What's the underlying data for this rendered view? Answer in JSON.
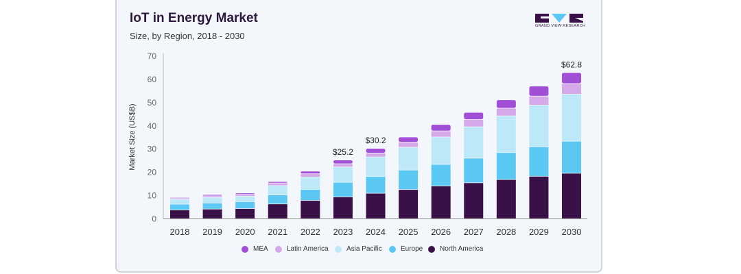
{
  "header": {
    "title": "IoT in Energy Market",
    "subtitle": "Size, by Region, 2018 - 2030",
    "logo_text": "GRAND VIEW RESEARCH"
  },
  "chart_data": {
    "type": "bar",
    "stacked": true,
    "title": "IoT in Energy Market",
    "subtitle": "Size, by Region, 2018 - 2030",
    "xlabel": "",
    "ylabel": "Market Size (US$B)",
    "ylim": [
      0,
      70
    ],
    "yticks": [
      0,
      10,
      20,
      30,
      40,
      50,
      60,
      70
    ],
    "grid": false,
    "legend_position": "bottom",
    "categories": [
      "2018",
      "2019",
      "2020",
      "2021",
      "2022",
      "2023",
      "2024",
      "2025",
      "2026",
      "2027",
      "2028",
      "2029",
      "2030"
    ],
    "series": [
      {
        "name": "North America",
        "color": "#3a1048",
        "values": [
          3.7,
          4.1,
          4.3,
          6.3,
          7.8,
          9.3,
          10.9,
          12.5,
          14.0,
          15.4,
          16.8,
          18.2,
          19.5
        ]
      },
      {
        "name": "Europe",
        "color": "#5ac8f2",
        "values": [
          2.5,
          2.6,
          3.0,
          3.9,
          4.8,
          6.3,
          7.2,
          8.4,
          9.3,
          10.6,
          11.6,
          12.7,
          13.8
        ]
      },
      {
        "name": "Asia Pacific",
        "color": "#bde8f8",
        "values": [
          2.1,
          2.4,
          2.3,
          4.0,
          5.3,
          6.6,
          8.4,
          9.8,
          11.8,
          13.5,
          15.8,
          17.9,
          20.2
        ]
      },
      {
        "name": "Latin America",
        "color": "#d5a8ea",
        "values": [
          0.6,
          0.7,
          0.8,
          1.1,
          1.4,
          1.4,
          1.7,
          2.2,
          2.6,
          3.1,
          3.3,
          3.9,
          4.6
        ]
      },
      {
        "name": "MEA",
        "color": "#a24fd8",
        "values": [
          0.3,
          0.5,
          0.6,
          0.6,
          1.1,
          1.6,
          2.0,
          2.2,
          2.8,
          3.1,
          3.6,
          4.3,
          4.7
        ]
      }
    ],
    "annotations": [
      {
        "category": "2023",
        "text": "$25.2"
      },
      {
        "category": "2024",
        "text": "$30.2"
      },
      {
        "category": "2030",
        "text": "$62.8"
      }
    ],
    "legend_order": [
      "MEA",
      "Latin America",
      "Asia Pacific",
      "Europe",
      "North America"
    ]
  }
}
